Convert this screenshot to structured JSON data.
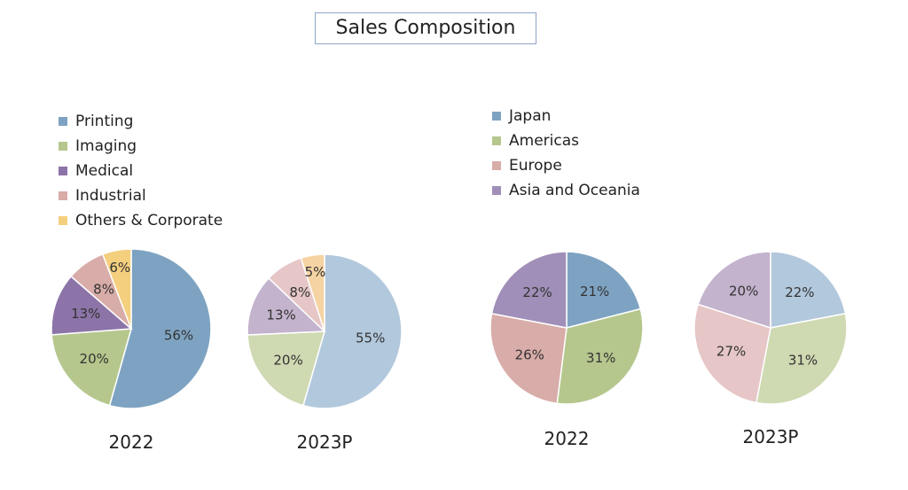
{
  "title": "Sales Composition",
  "chart_data": [
    {
      "type": "pie",
      "legend": [
        "Printing",
        "Imaging",
        "Medical",
        "Industrial",
        "Others & Corporate"
      ],
      "label": "2022",
      "values": [
        56,
        20,
        13,
        8,
        6
      ],
      "labels": [
        "56%",
        "20%",
        "13%",
        "8%",
        "6%"
      ],
      "colors": [
        "#7ea3c2",
        "#b5c78d",
        "#8c74a8",
        "#d8aca8",
        "#f4cf7e"
      ]
    },
    {
      "type": "pie",
      "legend": [
        "Printing",
        "Imaging",
        "Medical",
        "Industrial",
        "Others & Corporate"
      ],
      "label": "2023P",
      "values": [
        55,
        20,
        13,
        8,
        5
      ],
      "labels": [
        "55%",
        "20%",
        "13%",
        "8%",
        "5%"
      ],
      "colors": [
        "#b2c8dc",
        "#cfd9b2",
        "#c3b3cd",
        "#e6c6c6",
        "#f5d3a3"
      ]
    },
    {
      "type": "pie",
      "legend": [
        "Japan",
        "Americas",
        "Europe",
        "Asia and Oceania"
      ],
      "label": "2022",
      "values": [
        21,
        31,
        26,
        22
      ],
      "labels": [
        "21%",
        "31%",
        "26%",
        "22%"
      ],
      "colors": [
        "#7ea3c2",
        "#b5c78d",
        "#d8aca8",
        "#a08fb8"
      ]
    },
    {
      "type": "pie",
      "legend": [
        "Japan",
        "Americas",
        "Europe",
        "Asia and Oceania"
      ],
      "label": "2023P",
      "values": [
        22,
        31,
        27,
        20
      ],
      "labels": [
        "22%",
        "31%",
        "27%",
        "20%"
      ],
      "colors": [
        "#b2c8dc",
        "#cfd9b2",
        "#e6c6c6",
        "#c3b3cd"
      ]
    }
  ]
}
